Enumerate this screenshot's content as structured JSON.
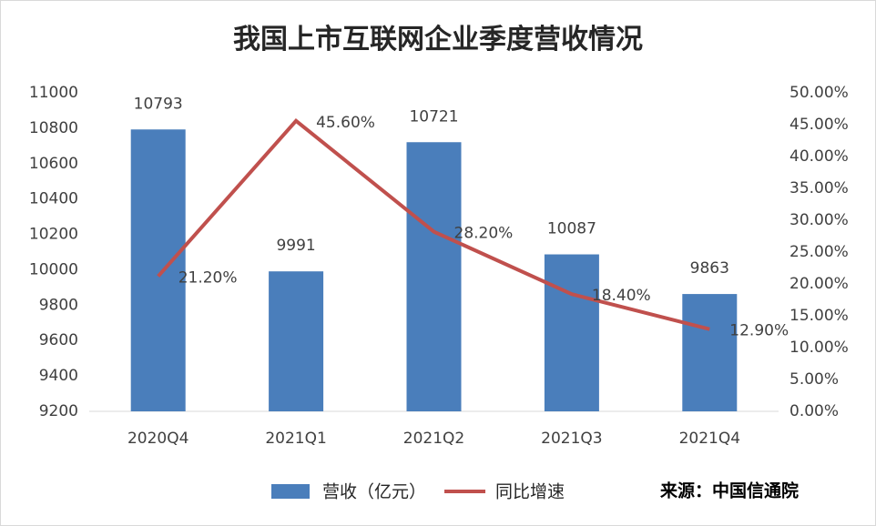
{
  "chart_data": {
    "type": "bar",
    "title": "我国上市互联网企业季度营收情况",
    "source": "来源：中国信通院",
    "categories": [
      "2020Q4",
      "2021Q1",
      "2021Q2",
      "2021Q3",
      "2021Q4"
    ],
    "series": [
      {
        "name": "营收（亿元）",
        "type": "bar",
        "color": "#4a7ebb",
        "values": [
          10793,
          9991,
          10721,
          10087,
          9863
        ]
      },
      {
        "name": "同比增速",
        "type": "line",
        "axis": "y2",
        "color": "#c0504d",
        "values": [
          21.2,
          45.6,
          28.2,
          18.4,
          12.9
        ],
        "value_labels": [
          "21.20%",
          "45.60%",
          "28.20%",
          "18.40%",
          "12.90%"
        ]
      }
    ],
    "ylim": [
      9200,
      11000
    ],
    "yticks": [
      9200,
      9400,
      9600,
      9800,
      10000,
      10200,
      10400,
      10600,
      10800,
      11000
    ],
    "y2lim": [
      0,
      50
    ],
    "y2ticks": [
      {
        "value": 0,
        "label": "0.00%"
      },
      {
        "value": 5,
        "label": "5.00%"
      },
      {
        "value": 10,
        "label": "10.00%"
      },
      {
        "value": 15,
        "label": "15.00%"
      },
      {
        "value": 20,
        "label": "20.00%"
      },
      {
        "value": 25,
        "label": "25.00%"
      },
      {
        "value": 30,
        "label": "30.00%"
      },
      {
        "value": 35,
        "label": "35.00%"
      },
      {
        "value": 40,
        "label": "40.00%"
      },
      {
        "value": 45,
        "label": "45.00%"
      },
      {
        "value": 50,
        "label": "50.00%"
      }
    ],
    "grid": false,
    "legend": "bottom"
  }
}
